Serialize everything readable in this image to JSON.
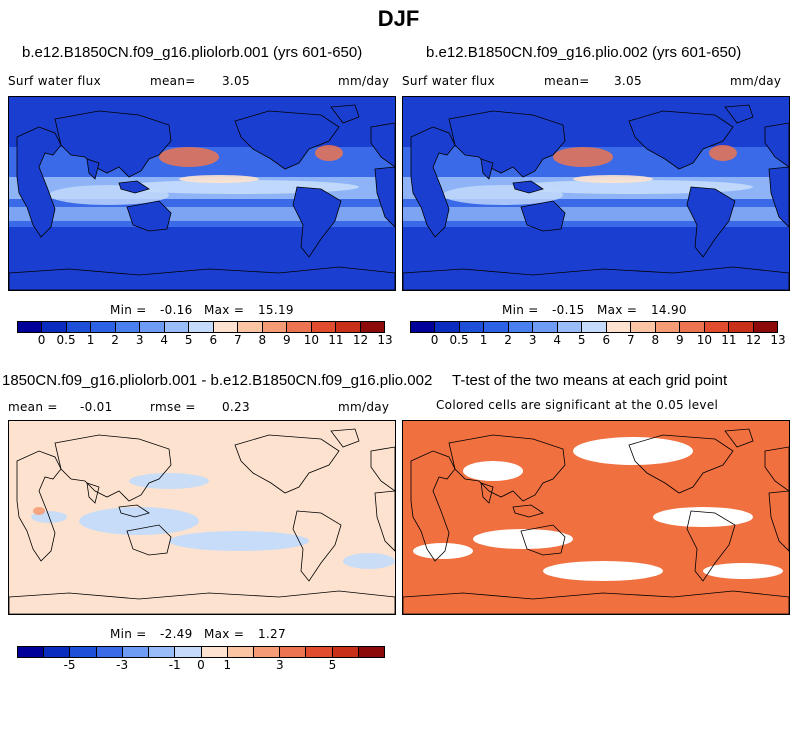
{
  "title": "DJF",
  "panels": {
    "p1": {
      "case": "b.e12.B1850CN.f09_g16.pliolorb.001 (yrs 601-650)",
      "variable": "Surf water flux",
      "mean_label": "mean=",
      "mean_value": "3.05",
      "units": "mm/day",
      "min_label": "Min =",
      "min_value": "-0.16",
      "max_label": "Max =",
      "max_value": "15.19"
    },
    "p2": {
      "case": "b.e12.B1850CN.f09_g16.plio.002 (yrs 601-650)",
      "variable": "Surf water flux",
      "mean_label": "mean=",
      "mean_value": "3.05",
      "units": "mm/day",
      "min_label": "Min =",
      "min_value": "-0.15",
      "max_label": "Max =",
      "max_value": "14.90"
    },
    "p3": {
      "case": "1850CN.f09_g16.pliolorb.001 - b.e12.B1850CN.f09_g16.plio.002",
      "mean_label": "mean =",
      "mean_value": "-0.01",
      "rmse_label": "rmse =",
      "rmse_value": "0.23",
      "units": "mm/day",
      "min_label": "Min =",
      "min_value": "-2.49",
      "max_label": "Max =",
      "max_value": "1.27"
    },
    "p4": {
      "title": "T-test of the two means at each grid point",
      "subtitle": "Colored cells are significant at the 0.05 level"
    }
  },
  "colorbar_abs": {
    "colors": [
      "#000099",
      "#0a2cbf",
      "#1e4fd8",
      "#2e62e6",
      "#4a7ff0",
      "#6e9cf5",
      "#98bdf8",
      "#c4dbfb",
      "#fde3cf",
      "#fbc4a3",
      "#f59c76",
      "#ec7450",
      "#df4c2e",
      "#c8301a",
      "#8c0a0a"
    ],
    "ticks": [
      "0",
      "0.5",
      "1",
      "2",
      "3",
      "4",
      "5",
      "6",
      "7",
      "8",
      "9",
      "10",
      "11",
      "12",
      "13"
    ]
  },
  "colorbar_diff": {
    "colors": [
      "#000099",
      "#0a2cbf",
      "#1e4fd8",
      "#3a6ae8",
      "#6e9cf5",
      "#98bdf8",
      "#c4dbfb",
      "#fde3cf",
      "#fbc4a3",
      "#f59c76",
      "#ec7450",
      "#df4c2e",
      "#c8301a",
      "#8c0a0a"
    ],
    "ticks": [
      "-5",
      "-3",
      "-1",
      "0",
      "1",
      "3",
      "5"
    ]
  },
  "map_colors": {
    "deep_blue": "#1a3fd0",
    "mid_blue": "#3a6ae8",
    "light_blue": "#98bdf8",
    "pale_blue": "#c4dbfb",
    "peach": "#fde3cf",
    "orange": "#ec7450",
    "significant": "#f07040"
  }
}
